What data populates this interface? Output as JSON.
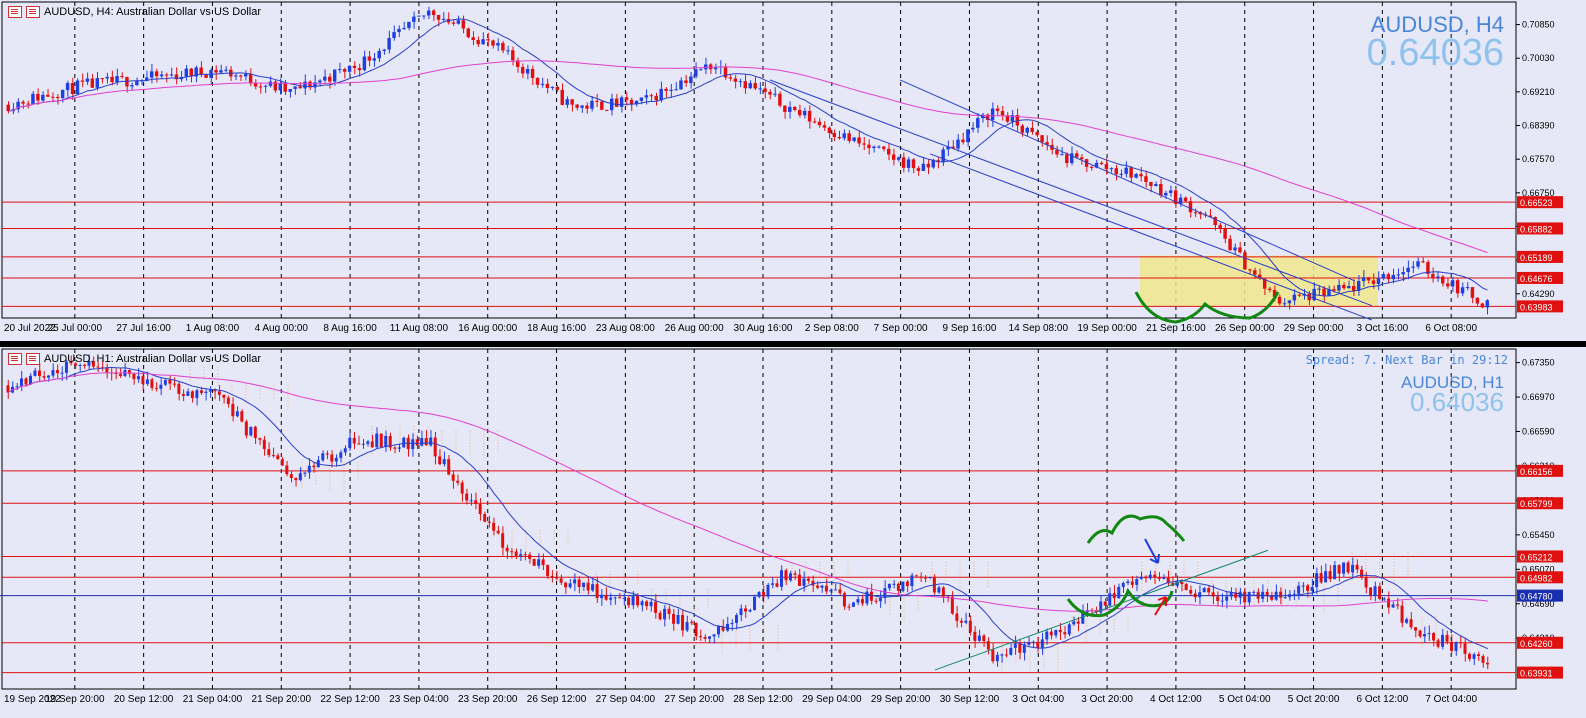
{
  "top": {
    "header": "AUDUSD, H4:  Australian Dollar vs US Dollar",
    "symbol": "AUDUSD, H4",
    "price": "0.64036",
    "price_axis": [
      "0.70850",
      "0.70030",
      "0.69210",
      "0.68390",
      "0.67570",
      "0.66750",
      "0.65930",
      "0.65110",
      "0.64290"
    ],
    "price_range": [
      0.637,
      0.714
    ],
    "level_lines": [
      {
        "label": "0.66523",
        "value": 0.66523
      },
      {
        "label": "0.65882",
        "value": 0.65882
      },
      {
        "label": "0.65189",
        "value": 0.65189
      },
      {
        "label": "0.64676",
        "value": 0.64676
      },
      {
        "label": "0.63983",
        "value": 0.63983
      }
    ],
    "time_axis": [
      "20 Jul 2022",
      "25 Jul 00:00",
      "27 Jul 16:00",
      "1 Aug 08:00",
      "4 Aug 00:00",
      "8 Aug 16:00",
      "11 Aug 08:00",
      "16 Aug 00:00",
      "18 Aug 16:00",
      "23 Aug 08:00",
      "26 Aug 00:00",
      "30 Aug 16:00",
      "2 Sep 08:00",
      "7 Sep 00:00",
      "9 Sep 16:00",
      "14 Sep 08:00",
      "19 Sep 00:00",
      "21 Sep 16:00",
      "26 Sep 00:00",
      "29 Sep 00:00",
      "3 Oct 16:00",
      "6 Oct 08:00"
    ],
    "colors": {
      "bull": "#1f3fe0",
      "bear": "#e01010",
      "ma_fast": "#2a3fc8",
      "ma_slow": "#e040d0",
      "level": "#e01010",
      "zone": "#f0e68c",
      "pattern": "#118811"
    }
  },
  "bottom": {
    "header": "AUDUSD, H1:  Australian Dollar vs US Dollar",
    "spread": "Spread: 7.  Next Bar in 29:12",
    "symbol": "AUDUSD, H1",
    "price": "0.64036",
    "price_axis": [
      "0.67350",
      "0.66970",
      "0.66590",
      "0.66210",
      "0.65830",
      "0.65450",
      "0.65070",
      "0.64690",
      "0.64310"
    ],
    "price_range": [
      0.6375,
      0.675
    ],
    "level_lines": [
      {
        "label": "0.66156",
        "value": 0.66156
      },
      {
        "label": "0.65799",
        "value": 0.65799
      },
      {
        "label": "0.65212",
        "value": 0.65212
      },
      {
        "label": "0.64982",
        "value": 0.64982
      },
      {
        "label": "0.64260",
        "value": 0.6426
      },
      {
        "label": "0.63931",
        "value": 0.63931
      }
    ],
    "current_line": {
      "label": "0.64780",
      "value": 0.6478
    },
    "time_axis": [
      "19 Sep 2022",
      "19 Sep 20:00",
      "20 Sep 12:00",
      "21 Sep 04:00",
      "21 Sep 20:00",
      "22 Sep 12:00",
      "23 Sep 04:00",
      "23 Sep 20:00",
      "26 Sep 12:00",
      "27 Sep 04:00",
      "27 Sep 20:00",
      "28 Sep 12:00",
      "29 Sep 04:00",
      "29 Sep 20:00",
      "30 Sep 12:00",
      "3 Oct 04:00",
      "3 Oct 20:00",
      "4 Oct 12:00",
      "5 Oct 04:00",
      "5 Oct 20:00",
      "6 Oct 12:00",
      "7 Oct 04:00"
    ],
    "colors": {
      "bull": "#1f3fe0",
      "bear": "#e01010",
      "ma_fast": "#2a3fc8",
      "ma_slow": "#e040d0",
      "level": "#e01010",
      "current": "#1a2fb0",
      "pattern": "#118811",
      "cloud": "#f0a060"
    }
  },
  "chart_data": [
    {
      "type": "line",
      "title": "AUDUSD, H4",
      "x": [
        "20 Jul",
        "25 Jul",
        "27 Jul",
        "1 Aug",
        "4 Aug",
        "8 Aug",
        "11 Aug",
        "16 Aug",
        "18 Aug",
        "23 Aug",
        "26 Aug",
        "30 Aug",
        "2 Sep",
        "7 Sep",
        "9 Sep",
        "14 Sep",
        "19 Sep",
        "21 Sep",
        "26 Sep",
        "29 Sep",
        "3 Oct",
        "6 Oct"
      ],
      "series": [
        {
          "values": [
            0.689,
            0.6935,
            0.6955,
            0.6975,
            0.692,
            0.699,
            0.712,
            0.702,
            0.6885,
            0.6895,
            0.699,
            0.689,
            0.68,
            0.673,
            0.688,
            0.676,
            0.672,
            0.662,
            0.641,
            0.644,
            0.65,
            0.6404
          ]
        }
      ],
      "ylim": [
        0.637,
        0.714
      ]
    },
    {
      "type": "line",
      "title": "AUDUSD, H1",
      "x": [
        "19 Sep",
        "19 Sep 20:00",
        "20 Sep 12:00",
        "21 Sep 04:00",
        "21 Sep 20:00",
        "22 Sep 12:00",
        "23 Sep 04:00",
        "23 Sep 20:00",
        "26 Sep 12:00",
        "27 Sep 04:00",
        "27 Sep 20:00",
        "28 Sep 12:00",
        "29 Sep 04:00",
        "29 Sep 20:00",
        "30 Sep 12:00",
        "3 Oct 04:00",
        "3 Oct 20:00",
        "4 Oct 12:00",
        "5 Oct 04:00",
        "5 Oct 20:00",
        "6 Oct 12:00",
        "7 Oct 04:00"
      ],
      "series": [
        {
          "values": [
            0.671,
            0.6735,
            0.6715,
            0.6695,
            0.661,
            0.665,
            0.6645,
            0.6535,
            0.649,
            0.647,
            0.643,
            0.65,
            0.647,
            0.65,
            0.641,
            0.644,
            0.65,
            0.648,
            0.6475,
            0.651,
            0.644,
            0.6404
          ]
        }
      ],
      "ylim": [
        0.6375,
        0.675
      ]
    }
  ]
}
